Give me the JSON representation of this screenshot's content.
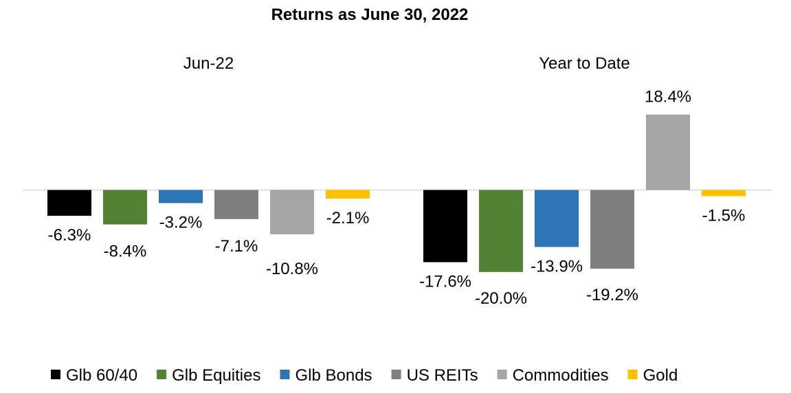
{
  "chart_data": {
    "type": "bar",
    "title": "Returns as June 30, 2022",
    "xlabel": "",
    "ylabel": "",
    "ylim": [
      -25,
      25
    ],
    "grid": false,
    "legend_position": "bottom",
    "groups": [
      "Jun-22",
      "Year to Date"
    ],
    "series": [
      {
        "name": "Glb 60/40",
        "color": "#000000",
        "values": [
          -6.3,
          -17.6
        ],
        "labels": [
          "-6.3%",
          "-17.6%"
        ]
      },
      {
        "name": "Glb Equities",
        "color": "#548235",
        "values": [
          -8.4,
          -20.0
        ],
        "labels": [
          "-8.4%",
          "-20.0%"
        ]
      },
      {
        "name": "Glb Bonds",
        "color": "#2E75B6",
        "values": [
          -3.2,
          -13.9
        ],
        "labels": [
          "-3.2%",
          "-13.9%"
        ]
      },
      {
        "name": "US REITs",
        "color": "#7F7F7F",
        "values": [
          -7.1,
          -19.2
        ],
        "labels": [
          "-7.1%",
          "-19.2%"
        ]
      },
      {
        "name": "Commodities",
        "color": "#A5A5A5",
        "values": [
          -10.8,
          18.4
        ],
        "labels": [
          "-10.8%",
          "18.4%"
        ]
      },
      {
        "name": "Gold",
        "color": "#FFC000",
        "values": [
          -2.1,
          -1.5
        ],
        "labels": [
          "-2.1%",
          "-1.5%"
        ]
      }
    ]
  }
}
